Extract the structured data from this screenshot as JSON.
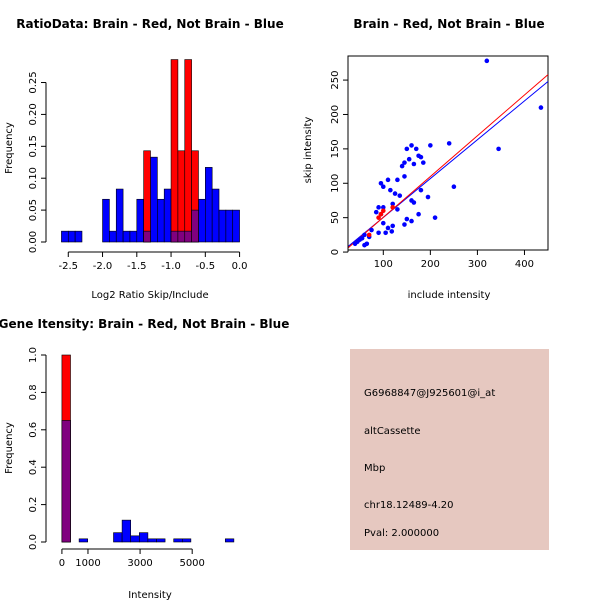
{
  "colors": {
    "red": "#ff0000",
    "blue": "#0000ff",
    "overlap": "#80007f",
    "info_bg": "#e6c8c0",
    "pval": "#cc0000"
  },
  "chart_data": [
    {
      "id": "ratio",
      "type": "bar",
      "title": "RatioData: Brain - Red, Not Brain - Blue",
      "xlabel": "Log2 Ratio Skip/Include",
      "ylabel": "Frequency",
      "xlim": [
        -2.65,
        0.05
      ],
      "ylim": [
        0,
        0.29
      ],
      "xticks": [
        -2.5,
        -2.0,
        -1.5,
        -1.0,
        -0.5,
        0.0
      ],
      "xtick_labels": [
        "-2.5",
        "-2.0",
        "-1.5",
        "-1.0",
        "-0.5",
        "0.0"
      ],
      "yticks": [
        0.0,
        0.05,
        0.1,
        0.15,
        0.2,
        0.25
      ],
      "ytick_labels": [
        "0.00",
        "0.05",
        "0.10",
        "0.15",
        "0.20",
        "0.25"
      ],
      "bin_width": 0.1,
      "series": [
        {
          "name": "Not Brain",
          "color": "blue",
          "bins": [
            -2.6,
            -2.5,
            -2.4,
            -2.3,
            -2.2,
            -2.1,
            -2.0,
            -1.9,
            -1.8,
            -1.7,
            -1.6,
            -1.5,
            -1.4,
            -1.3,
            -1.2,
            -1.1,
            -1.0,
            -0.9,
            -0.8,
            -0.7,
            -0.6,
            -0.5,
            -0.4,
            -0.3,
            -0.2,
            -0.1
          ],
          "values": [
            0.017,
            0.017,
            0.017,
            0,
            0,
            0,
            0.067,
            0.017,
            0.083,
            0.017,
            0.017,
            0.067,
            0.017,
            0.133,
            0.067,
            0.083,
            0.017,
            0.017,
            0.017,
            0.05,
            0.067,
            0.117,
            0.083,
            0.05,
            0.05,
            0.05
          ]
        },
        {
          "name": "Brain",
          "color": "red",
          "bins": [
            -1.4,
            -1.3,
            -1.2,
            -1.1,
            -1.0,
            -0.9,
            -0.8,
            -0.7,
            -0.6,
            -0.5
          ],
          "values": [
            0.143,
            0,
            0,
            0,
            0.286,
            0.143,
            0.286,
            0.143,
            0,
            0
          ]
        }
      ]
    },
    {
      "id": "scatter",
      "type": "scatter",
      "title": "Brain - Red, Not Brain - Blue",
      "xlabel": "include intensity",
      "ylabel": "skip intensity",
      "xlim": [
        25,
        450
      ],
      "ylim": [
        3,
        285
      ],
      "xticks": [
        100,
        200,
        300,
        400
      ],
      "xtick_labels": [
        "100",
        "200",
        "300",
        "400"
      ],
      "yticks": [
        0,
        50,
        100,
        150,
        200,
        250
      ],
      "ytick_labels": [
        "0",
        "50",
        "100",
        "150",
        "200",
        "250"
      ],
      "series": [
        {
          "name": "Not Brain",
          "color": "blue",
          "points": [
            [
              320,
              278
            ],
            [
              435,
              210
            ],
            [
              240,
              158
            ],
            [
              345,
              150
            ],
            [
              200,
              155
            ],
            [
              160,
              155
            ],
            [
              150,
              150
            ],
            [
              170,
              150
            ],
            [
              175,
              140
            ],
            [
              180,
              138
            ],
            [
              185,
              130
            ],
            [
              165,
              128
            ],
            [
              155,
              135
            ],
            [
              145,
              130
            ],
            [
              140,
              125
            ],
            [
              145,
              110
            ],
            [
              130,
              105
            ],
            [
              110,
              105
            ],
            [
              95,
              100
            ],
            [
              100,
              95
            ],
            [
              250,
              95
            ],
            [
              180,
              90
            ],
            [
              115,
              90
            ],
            [
              125,
              85
            ],
            [
              135,
              82
            ],
            [
              195,
              80
            ],
            [
              160,
              75
            ],
            [
              165,
              72
            ],
            [
              120,
              70
            ],
            [
              100,
              65
            ],
            [
              90,
              65
            ],
            [
              130,
              62
            ],
            [
              85,
              58
            ],
            [
              95,
              55
            ],
            [
              175,
              55
            ],
            [
              210,
              50
            ],
            [
              150,
              48
            ],
            [
              160,
              45
            ],
            [
              100,
              42
            ],
            [
              145,
              40
            ],
            [
              120,
              38
            ],
            [
              110,
              35
            ],
            [
              75,
              32
            ],
            [
              90,
              28
            ],
            [
              60,
              25
            ],
            [
              70,
              22
            ],
            [
              55,
              20
            ],
            [
              45,
              15
            ],
            [
              40,
              12
            ],
            [
              65,
              12
            ],
            [
              60,
              10
            ],
            [
              50,
              18
            ],
            [
              105,
              28
            ],
            [
              118,
              30
            ]
          ]
        },
        {
          "name": "Brain",
          "color": "red",
          "points": [
            [
              95,
              55
            ],
            [
              90,
              50
            ],
            [
              100,
              60
            ],
            [
              70,
              25
            ],
            [
              120,
              65
            ]
          ]
        }
      ],
      "fit_lines": [
        {
          "name": "Not Brain",
          "color": "blue",
          "from": [
            25,
            8
          ],
          "to": [
            450,
            248
          ]
        },
        {
          "name": "Brain",
          "color": "red",
          "from": [
            25,
            6
          ],
          "to": [
            450,
            258
          ]
        }
      ]
    },
    {
      "id": "intensity",
      "type": "bar",
      "title": "Gene Itensity: Brain - Red, Not Brain - Blue",
      "xlabel": "Intensity",
      "ylabel": "Frequency",
      "xlim": [
        -150,
        6950
      ],
      "ylim": [
        0,
        1.0
      ],
      "xticks": [
        0,
        1000,
        3000,
        5000
      ],
      "xtick_labels": [
        "0",
        "1000",
        "3000",
        "5000"
      ],
      "yticks": [
        0,
        0.2,
        0.4,
        0.6,
        0.8,
        1.0
      ],
      "ytick_labels": [
        "0.0",
        "0.2",
        "0.4",
        "0.6",
        "0.8",
        "1.0"
      ],
      "bin_width": 330,
      "series": [
        {
          "name": "Not Brain",
          "color": "blue",
          "bins": [
            0,
            330,
            660,
            990,
            1320,
            1650,
            1980,
            2310,
            2640,
            2970,
            3300,
            3630,
            3960,
            4290,
            4620,
            4950,
            5280,
            5610,
            5940,
            6270
          ],
          "values": [
            0.65,
            0,
            0.017,
            0,
            0,
            0,
            0.05,
            0.117,
            0.033,
            0.05,
            0.017,
            0.017,
            0,
            0.017,
            0.017,
            0,
            0,
            0,
            0,
            0.017
          ]
        },
        {
          "name": "Brain",
          "color": "red",
          "bins": [
            0
          ],
          "values": [
            1.0
          ]
        }
      ]
    }
  ],
  "info_panel": {
    "probe": "G6968847@J925601@i_at",
    "type": "altCassette",
    "gene": "Mbp",
    "location": "chr18.12489-4.20",
    "pval": "Pval: 2.000000"
  }
}
